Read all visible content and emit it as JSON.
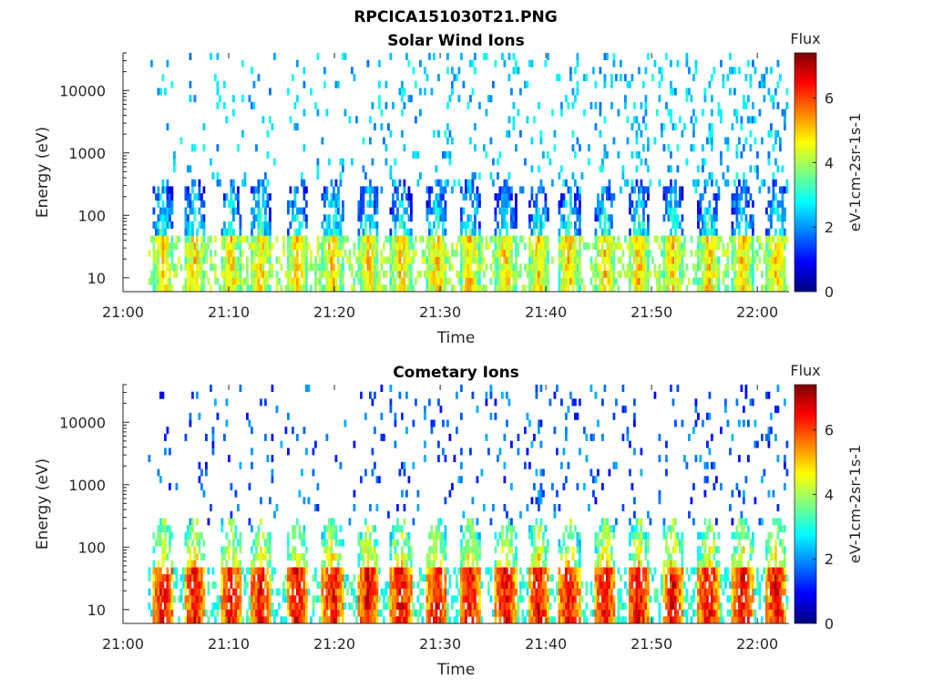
{
  "chart_data": {
    "type": "heatmap",
    "title": "RPCICA151030T21.PNG",
    "time_start": "21:00",
    "time_end": "22:03",
    "x_tick_labels": [
      "21:00",
      "21:10",
      "21:20",
      "21:30",
      "21:40",
      "21:50",
      "22:00"
    ],
    "y_tick_labels": [
      "10",
      "100",
      "1000",
      "10000"
    ],
    "xlabel": "Time",
    "ylabel": "Energy (eV)",
    "colorbar": {
      "title": "Flux",
      "label": "eV-1cm-2sr-1s-1",
      "tick_labels": [
        "0",
        "2",
        "4",
        "6"
      ],
      "range": [
        0,
        7.4
      ],
      "colormap": "jet"
    },
    "panels": [
      {
        "title": "Solar Wind Ions",
        "bursts_minutes": [
          3.8,
          6.8,
          10.2,
          13.0,
          16.5,
          19.8,
          23.2,
          26.3,
          29.7,
          32.8,
          36.2,
          39.3,
          42.2,
          45.6,
          48.8,
          52.0,
          55.4,
          58.6,
          61.8
        ],
        "burst_peak_flux": 5.0,
        "burst_energy_range_eV": [
          6,
          400
        ],
        "background_flux": 2.3
      },
      {
        "title": "Cometary Ions",
        "bursts_minutes": [
          3.8,
          6.8,
          10.2,
          13.0,
          16.5,
          19.8,
          23.2,
          26.3,
          29.7,
          32.8,
          36.2,
          39.3,
          42.2,
          45.6,
          48.8,
          52.0,
          55.4,
          58.6,
          61.8
        ],
        "burst_peak_flux": 6.6,
        "burst_energy_range_eV": [
          6,
          300
        ],
        "background_flux": 1.5
      }
    ]
  }
}
